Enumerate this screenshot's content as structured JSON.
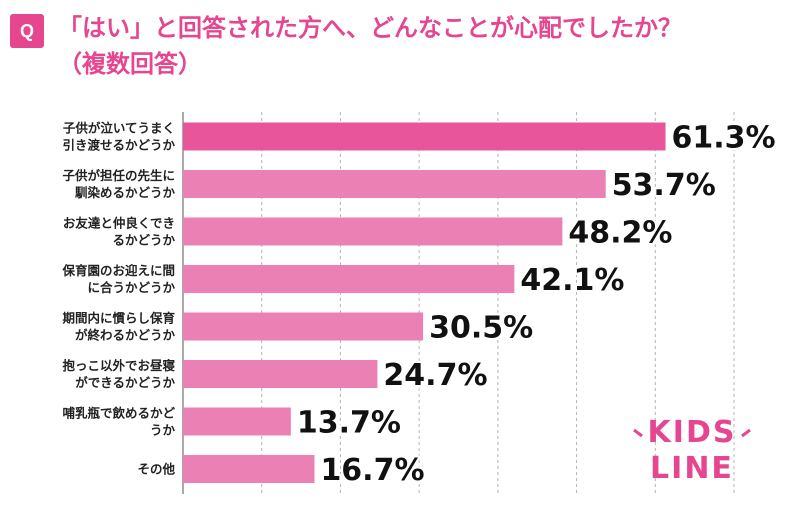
{
  "header": {
    "badge": "Q",
    "title_line1": "「はい」と回答された方へ、どんなことが心配でしたか？",
    "title_line2": "（複数回答）"
  },
  "colors": {
    "accent": "#e6458f",
    "bar": "#ea80b3",
    "bar_highlight": "#e8559a",
    "grid": "#b5b5b5"
  },
  "logo": {
    "line1": "KIDS",
    "line2": "LINE"
  },
  "chart_data": {
    "type": "bar",
    "orientation": "horizontal",
    "categories": [
      [
        "子供が泣いてうまく",
        "引き渡せるかどうか"
      ],
      [
        "子供が担任の先生に",
        "馴染めるかどうか"
      ],
      [
        "お友達と仲良くでき",
        "るかどうか"
      ],
      [
        "保育園のお迎えに間",
        "に合うかどうか"
      ],
      [
        "期間内に慣らし保育",
        "が終わるかどうか"
      ],
      [
        "抱っこ以外でお昼寝",
        "ができるかどうか"
      ],
      [
        "哺乳瓶で飲めるかど",
        "うか"
      ],
      [
        "その他"
      ]
    ],
    "values": [
      61.3,
      53.7,
      48.2,
      42.1,
      30.5,
      24.7,
      13.7,
      16.7
    ],
    "value_labels": [
      "61.3%",
      "53.7%",
      "48.2%",
      "42.1%",
      "30.5%",
      "24.7%",
      "13.7%",
      "16.7%"
    ],
    "xlim": [
      0,
      70
    ],
    "grid": true
  }
}
